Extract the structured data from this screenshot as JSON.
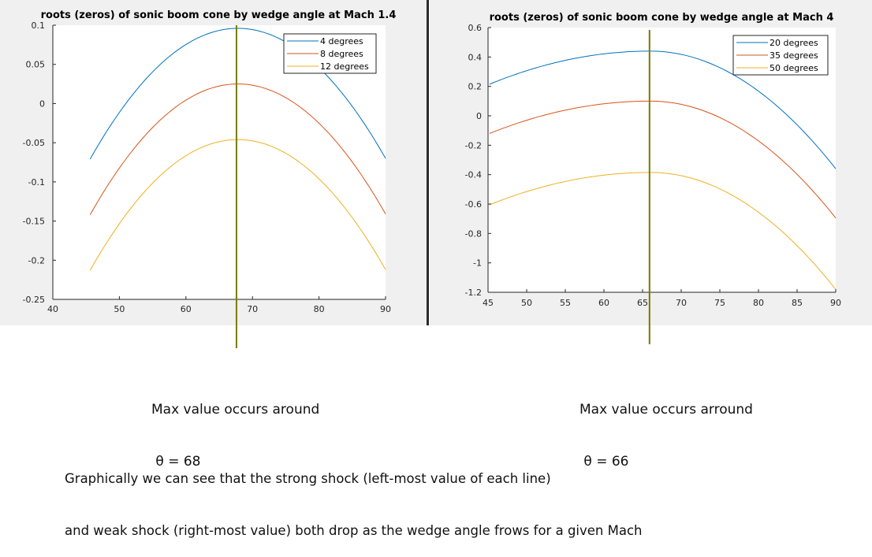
{
  "colors": {
    "blue": "#0072bd",
    "orange": "#d95319",
    "yellow": "#edb120",
    "marker": "#7a7a00",
    "axis": "#262626",
    "panel": "#f0f0f0"
  },
  "annotations": {
    "left_line1": "Max value occurs around",
    "left_line2": " θ = 68",
    "right_line1": "Max value occurs arround",
    "right_line2": " θ = 66",
    "conclusion_line1": "Graphically we can see that the strong shock (left-most value of each line)",
    "conclusion_line2": "and weak shock (right-most value) both drop as the wedge angle frows for a given Mach"
  },
  "chart_data": [
    {
      "type": "line",
      "title": "roots (zeros) of sonic boom cone by wedge angle at Mach 1.4",
      "xlabel": "",
      "ylabel": "",
      "xlim": [
        40,
        90
      ],
      "ylim": [
        -0.25,
        0.1
      ],
      "xticks": [
        40,
        50,
        60,
        70,
        80,
        90
      ],
      "yticks": [
        -0.25,
        -0.2,
        -0.15,
        -0.1,
        -0.05,
        0,
        0.05,
        0.1
      ],
      "ytick_labels": [
        "-0.25",
        "-0.2",
        "-0.15",
        "-0.1",
        "-0.05",
        "0",
        "0.05",
        "0.1"
      ],
      "grid": false,
      "legend_position": "top-right",
      "marker_x": 67.6,
      "series": [
        {
          "name": "4 degrees",
          "color": "blue",
          "peak_x": 67.8,
          "points": [
            [
              45.6,
              -0.071
            ],
            [
              67.8,
              0.096
            ],
            [
              90,
              -0.07
            ]
          ]
        },
        {
          "name": "8 degrees",
          "color": "orange",
          "peak_x": 67.8,
          "points": [
            [
              45.6,
              -0.142
            ],
            [
              67.8,
              0.025
            ],
            [
              90,
              -0.141
            ]
          ]
        },
        {
          "name": "12 degrees",
          "color": "yellow",
          "peak_x": 67.8,
          "points": [
            [
              45.6,
              -0.213
            ],
            [
              67.8,
              -0.046
            ],
            [
              90,
              -0.212
            ]
          ]
        }
      ]
    },
    {
      "type": "line",
      "title": "roots (zeros) of sonic boom cone by wedge angle at Mach 4",
      "xlabel": "",
      "ylabel": "",
      "xlim": [
        45,
        90
      ],
      "ylim": [
        -1.2,
        0.6
      ],
      "xticks": [
        45,
        50,
        55,
        60,
        65,
        70,
        75,
        80,
        85,
        90
      ],
      "yticks": [
        -1.2,
        -1,
        -0.8,
        -0.6,
        -0.4,
        -0.2,
        0,
        0.2,
        0.4,
        0.6
      ],
      "ytick_labels": [
        "-1.2",
        "-1",
        "-0.8",
        "-0.6",
        "-0.4",
        "-0.2",
        "0",
        "0.2",
        "0.4",
        "0.6"
      ],
      "grid": false,
      "legend_position": "top-right",
      "marker_x": 65.9,
      "series": [
        {
          "name": "20 degrees",
          "color": "blue",
          "peak_x": 66,
          "points": [
            [
              45.2,
              0.215
            ],
            [
              66,
              0.44
            ],
            [
              90,
              -0.36
            ]
          ]
        },
        {
          "name": "35 degrees",
          "color": "orange",
          "peak_x": 66,
          "points": [
            [
              45.2,
              -0.12
            ],
            [
              66,
              0.1
            ],
            [
              90,
              -0.695
            ]
          ]
        },
        {
          "name": "50 degrees",
          "color": "yellow",
          "peak_x": 66,
          "points": [
            [
              45.2,
              -0.605
            ],
            [
              66,
              -0.385
            ],
            [
              90,
              -1.18
            ]
          ]
        }
      ]
    }
  ]
}
